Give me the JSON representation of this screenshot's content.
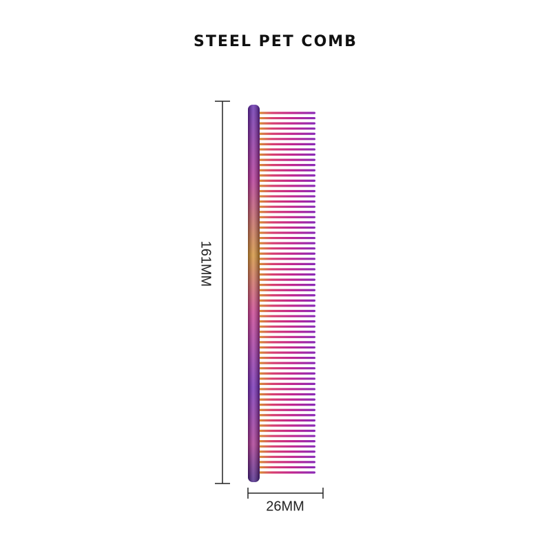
{
  "title": "STEEL PET COMB",
  "dimensions": {
    "height_label": "161MM",
    "width_label": "26MM"
  },
  "comb": {
    "tooth_count": 70,
    "colors": {
      "iridescent_purple": "#8a2be2",
      "magenta": "#d81b8a",
      "gold": "#d99a2b",
      "violet_dark": "#4b1a8f"
    }
  }
}
